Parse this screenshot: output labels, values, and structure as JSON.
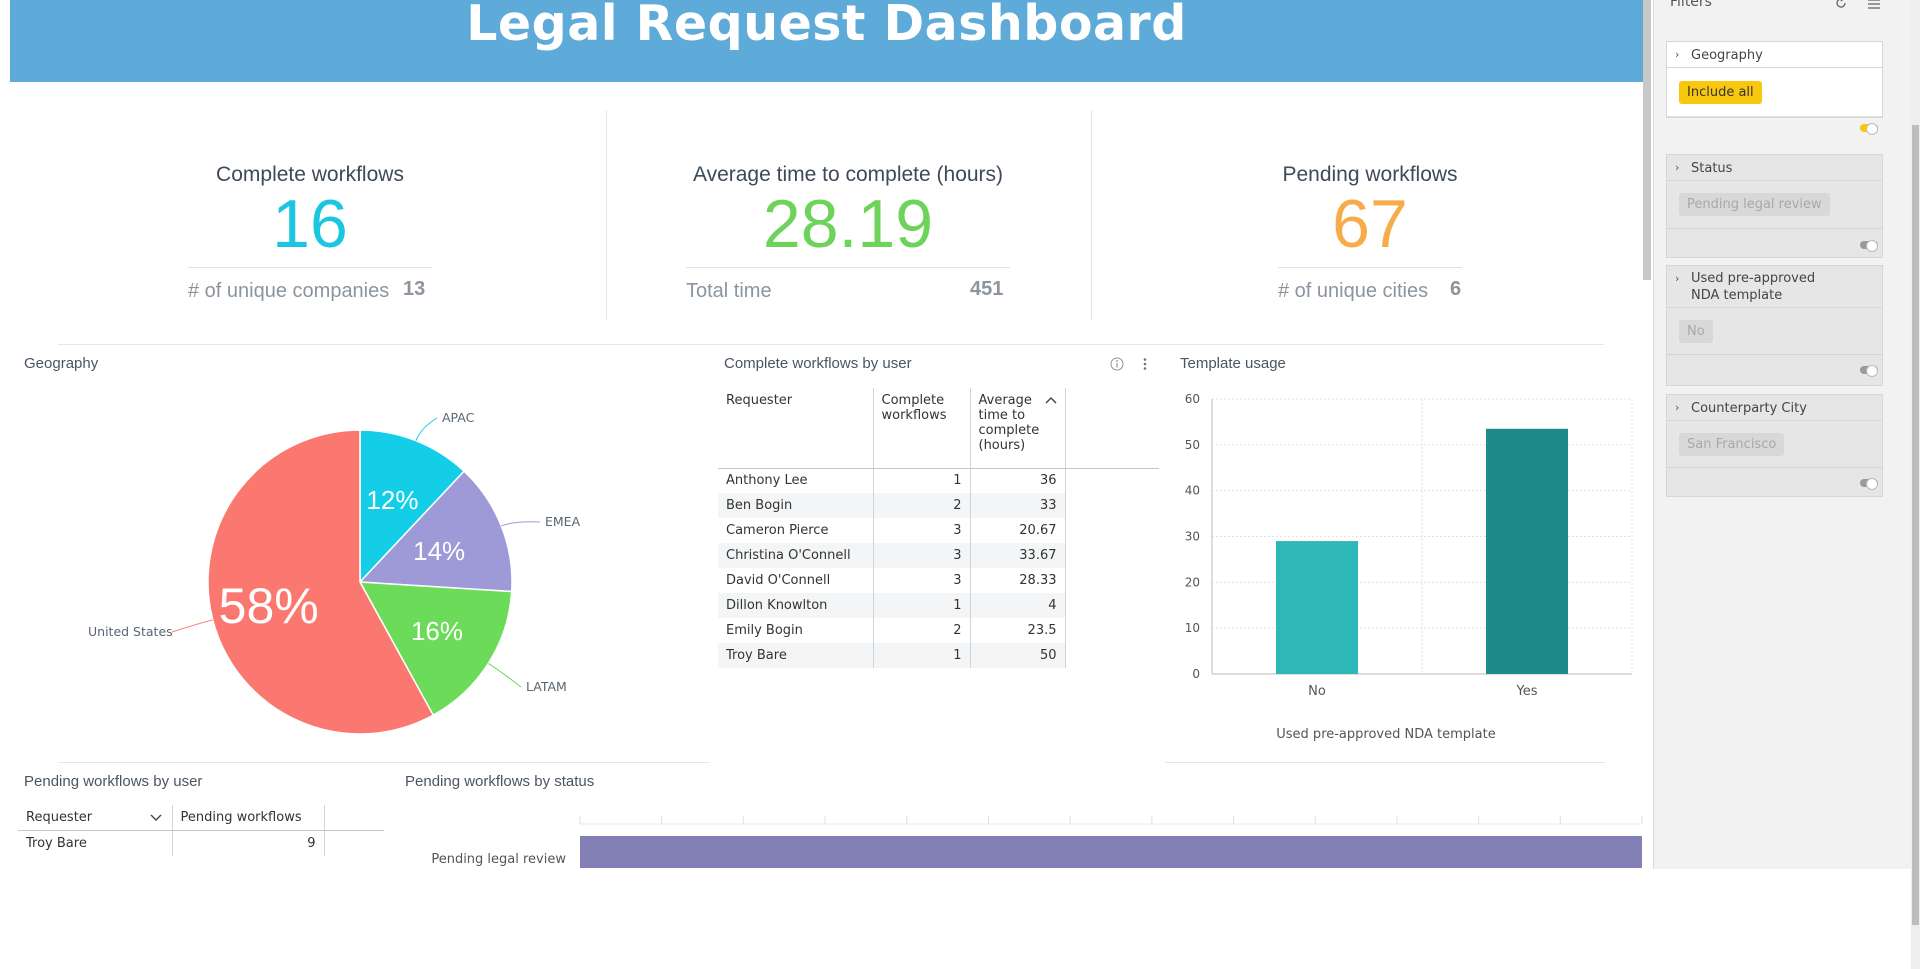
{
  "header": {
    "title": "Legal Request Dashboard"
  },
  "kpis": [
    {
      "title": "Complete workflows",
      "value": "16",
      "color": "#1dc6e0",
      "sub_label": "# of unique companies",
      "sub_value": "13"
    },
    {
      "title": "Average time to complete (hours)",
      "value": "28.19",
      "color": "#6dd35a",
      "sub_label": "Total time",
      "sub_value": "451"
    },
    {
      "title": "Pending workflows",
      "value": "67",
      "color": "#f7ac4c",
      "sub_label": "# of unique cities",
      "sub_value": "6"
    }
  ],
  "geography": {
    "title": "Geography",
    "chart_data": {
      "type": "pie",
      "categories": [
        "United States",
        "APAC",
        "EMEA",
        "LATAM"
      ],
      "values": [
        58,
        12,
        14,
        16
      ],
      "labels": [
        "58%",
        "12%",
        "14%",
        "16%"
      ],
      "colors": [
        "#fb7871",
        "#14cde6",
        "#9d9ad7",
        "#6cdb5a"
      ]
    }
  },
  "complete_by_user": {
    "title": "Complete workflows by user",
    "columns": [
      "Requester",
      "Complete workflows",
      "Average time to complete (hours)"
    ],
    "rows": [
      [
        "Anthony Lee",
        "1",
        "36"
      ],
      [
        "Ben Bogin",
        "2",
        "33"
      ],
      [
        "Cameron Pierce",
        "3",
        "20.67"
      ],
      [
        "Christina O'Connell",
        "3",
        "33.67"
      ],
      [
        "David O'Connell",
        "3",
        "28.33"
      ],
      [
        "Dillon Knowlton",
        "1",
        "4"
      ],
      [
        "Emily Bogin",
        "2",
        "23.5"
      ],
      [
        "Troy Bare",
        "1",
        "50"
      ]
    ]
  },
  "template_usage": {
    "title": "Template usage",
    "chart_data": {
      "type": "bar",
      "categories": [
        "No",
        "Yes"
      ],
      "values": [
        29,
        53.5
      ],
      "xlabel": "Used pre-approved NDA template",
      "ylim": [
        0,
        60
      ],
      "yticks": [
        "0",
        "10",
        "20",
        "30",
        "40",
        "50",
        "60"
      ],
      "colors": [
        "#2db7b7",
        "#1f8a8a"
      ]
    }
  },
  "pending_by_user": {
    "title": "Pending workflows by user",
    "columns": [
      "Requester",
      "Pending workflows"
    ],
    "rows": [
      [
        "Troy Bare",
        "9"
      ]
    ]
  },
  "pending_by_status": {
    "title": "Pending workflows by status",
    "chart_data": {
      "type": "bar",
      "orientation": "horizontal",
      "categories": [
        "Pending legal review"
      ],
      "values": [
        67
      ],
      "color": "#8280b4"
    }
  },
  "filters": {
    "title": "Filters",
    "items": [
      {
        "label": "Geography",
        "chip": "Include all"
      },
      {
        "label": "Status",
        "chip": "Pending legal review"
      },
      {
        "label": "Used pre-approved",
        "label2": "NDA template",
        "chip": "No"
      },
      {
        "label": "Counterparty City",
        "chip": "San Francisco"
      }
    ]
  }
}
